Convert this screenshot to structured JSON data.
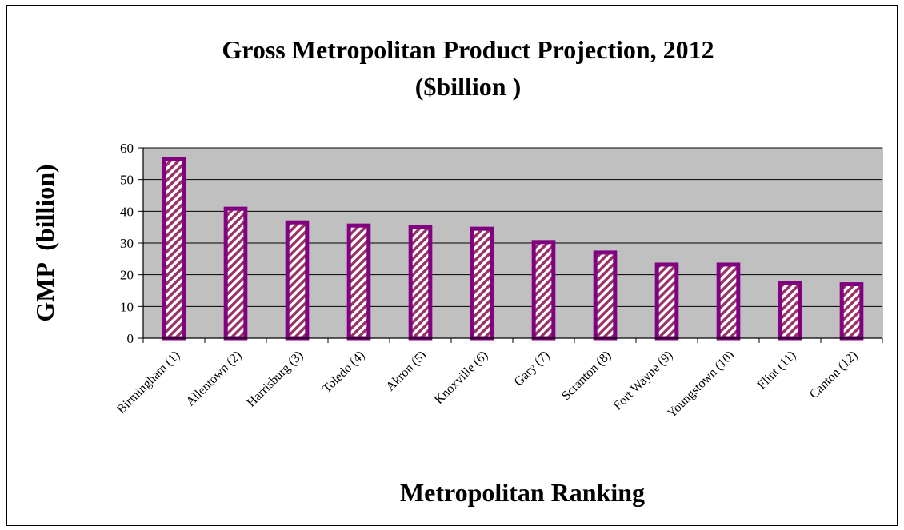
{
  "chart_data": {
    "type": "bar",
    "title": "Gross Metropolitan Product Projection, 2012",
    "subtitle": "($billion )",
    "xlabel": "Metropolitan Ranking",
    "ylabel": "GMP  (billion)",
    "ylim": [
      0,
      60
    ],
    "yticks": [
      0,
      10,
      20,
      30,
      40,
      50,
      60
    ],
    "grid": true,
    "categories": [
      "Birmingham (1)",
      "Allentown (2)",
      "Harrisburg (3)",
      "Toledo (4)",
      "Akron (5)",
      "Knoxville (6)",
      "Gary (7)",
      "Scranton (8)",
      "Fort Wayne (9)",
      "Youngstown (10)",
      "Flint (11)",
      "Canton (12)"
    ],
    "values": [
      56.5,
      40.8,
      36.5,
      35.5,
      35.0,
      34.5,
      30.3,
      27.0,
      23.2,
      23.2,
      17.5,
      17.0
    ],
    "colors": {
      "plot_background": "#c0c0c0",
      "bar_outline": "#800080",
      "bar_hatch": "#993366",
      "bar_fill": "#ffffff",
      "gridline": "#000000"
    }
  }
}
